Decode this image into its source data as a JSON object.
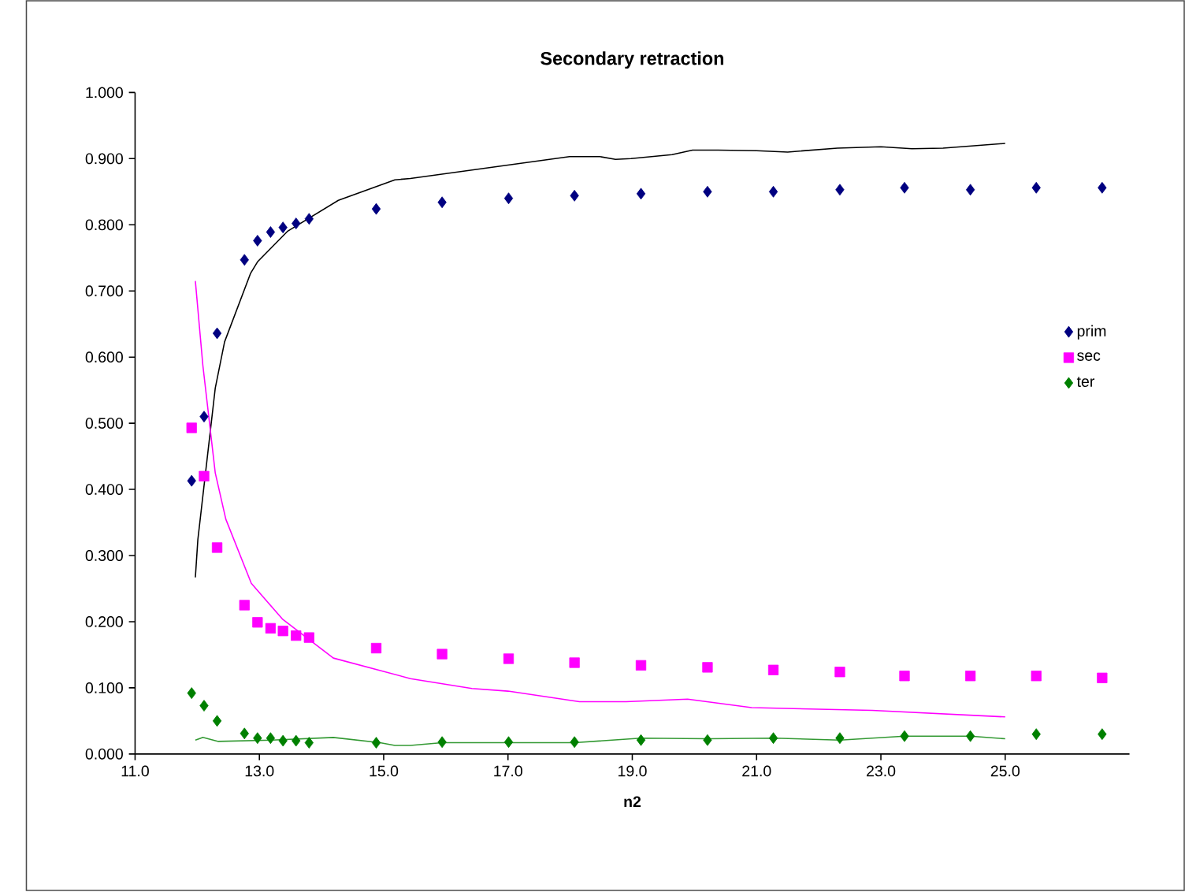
{
  "chart_data": {
    "type": "scatter",
    "title": "Secondary retraction",
    "xlabel": "n2",
    "xlim": [
      11,
      27
    ],
    "ylim": [
      0,
      1
    ],
    "xticks": [
      {
        "value": 11,
        "label": "11.0"
      },
      {
        "value": 13,
        "label": "13.0"
      },
      {
        "value": 15,
        "label": "15.0"
      },
      {
        "value": 17,
        "label": "17.0"
      },
      {
        "value": 19,
        "label": "19.0"
      },
      {
        "value": 21,
        "label": "21.0"
      },
      {
        "value": 23,
        "label": "23.0"
      },
      {
        "value": 25,
        "label": "25.0"
      }
    ],
    "yticks": [
      {
        "value": 0,
        "label": "0.000"
      },
      {
        "value": 0.1,
        "label": "0.100"
      },
      {
        "value": 0.2,
        "label": "0.200"
      },
      {
        "value": 0.3,
        "label": "0.300"
      },
      {
        "value": 0.4,
        "label": "0.400"
      },
      {
        "value": 0.5,
        "label": "0.500"
      },
      {
        "value": 0.6,
        "label": "0.600"
      },
      {
        "value": 0.7,
        "label": "0.700"
      },
      {
        "value": 0.8,
        "label": "0.800"
      },
      {
        "value": 0.9,
        "label": "0.900"
      },
      {
        "value": 1,
        "label": "1.000"
      }
    ],
    "legend": "right",
    "series": [
      {
        "name": "prim",
        "color": "#000080",
        "marker": "diamond",
        "x": [
          11.91,
          12.11,
          12.32,
          12.76,
          12.97,
          13.18,
          13.38,
          13.59,
          13.8,
          14.88,
          15.94,
          17.01,
          18.07,
          19.14,
          20.21,
          21.27,
          22.34,
          23.38,
          24.44,
          25.5,
          26.56
        ],
        "values": [
          0.413,
          0.51,
          0.636,
          0.747,
          0.776,
          0.789,
          0.796,
          0.802,
          0.809,
          0.824,
          0.834,
          0.84,
          0.844,
          0.847,
          0.85,
          0.85,
          0.853,
          0.856,
          0.853,
          0.856,
          0.856
        ]
      },
      {
        "name": "sec",
        "color": "#ff00ff",
        "marker": "square",
        "x": [
          11.91,
          12.11,
          12.32,
          12.76,
          12.97,
          13.18,
          13.38,
          13.59,
          13.8,
          14.88,
          15.94,
          17.01,
          18.07,
          19.14,
          20.21,
          21.27,
          22.34,
          23.38,
          24.44,
          25.5,
          26.56
        ],
        "values": [
          0.493,
          0.42,
          0.312,
          0.225,
          0.199,
          0.19,
          0.186,
          0.179,
          0.176,
          0.16,
          0.151,
          0.144,
          0.138,
          0.134,
          0.131,
          0.127,
          0.124,
          0.118,
          0.118,
          0.118,
          0.115
        ]
      },
      {
        "name": "ter",
        "color": "#008000",
        "marker": "diamond",
        "x": [
          11.91,
          12.11,
          12.32,
          12.76,
          12.97,
          13.18,
          13.38,
          13.59,
          13.8,
          14.88,
          15.94,
          17.01,
          18.07,
          19.14,
          20.21,
          21.27,
          22.34,
          23.38,
          24.44,
          25.5,
          26.56
        ],
        "values": [
          0.092,
          0.073,
          0.05,
          0.031,
          0.024,
          0.024,
          0.02,
          0.02,
          0.017,
          0.017,
          0.018,
          0.018,
          0.018,
          0.021,
          0.021,
          0.024,
          0.024,
          0.027,
          0.027,
          0.03,
          0.03
        ]
      },
      {
        "type": "line",
        "color": "#000000",
        "marker": "none",
        "line_style": "solid",
        "x": [
          11.97,
          12.01,
          12.29,
          12.44,
          12.86,
          12.97,
          13.45,
          14.27,
          15.18,
          15.43,
          17.99,
          18.48,
          18.73,
          18.98,
          19.64,
          19.97,
          20.38,
          21.0,
          21.5,
          22.3,
          23.0,
          23.5,
          24.0,
          25.0
        ],
        "values": [
          0.267,
          0.324,
          0.553,
          0.623,
          0.727,
          0.744,
          0.79,
          0.837,
          0.868,
          0.87,
          0.903,
          0.903,
          0.899,
          0.9,
          0.906,
          0.913,
          0.913,
          0.912,
          0.91,
          0.916,
          0.918,
          0.915,
          0.916,
          0.923
        ]
      },
      {
        "type": "line",
        "color": "#ff00ff",
        "marker": "none",
        "line_style": "solid",
        "x": [
          11.97,
          12.09,
          12.29,
          12.46,
          12.87,
          13.37,
          14.19,
          15.43,
          16.42,
          17.0,
          18.15,
          18.9,
          19.89,
          20.92,
          22.86,
          25.0
        ],
        "values": [
          0.715,
          0.588,
          0.425,
          0.355,
          0.258,
          0.204,
          0.145,
          0.114,
          0.099,
          0.095,
          0.079,
          0.079,
          0.083,
          0.07,
          0.066,
          0.056
        ]
      },
      {
        "type": "line",
        "color": "#339933",
        "marker": "none",
        "line_style": "solid",
        "x": [
          11.97,
          12.09,
          12.34,
          13.2,
          14.19,
          14.94,
          15.18,
          15.43,
          15.94,
          18.07,
          19.14,
          20.22,
          21.29,
          22.34,
          23.38,
          24.44,
          25.0
        ],
        "values": [
          0.021,
          0.025,
          0.019,
          0.021,
          0.025,
          0.017,
          0.013,
          0.013,
          0.017,
          0.017,
          0.024,
          0.023,
          0.024,
          0.021,
          0.027,
          0.027,
          0.023
        ]
      }
    ]
  }
}
